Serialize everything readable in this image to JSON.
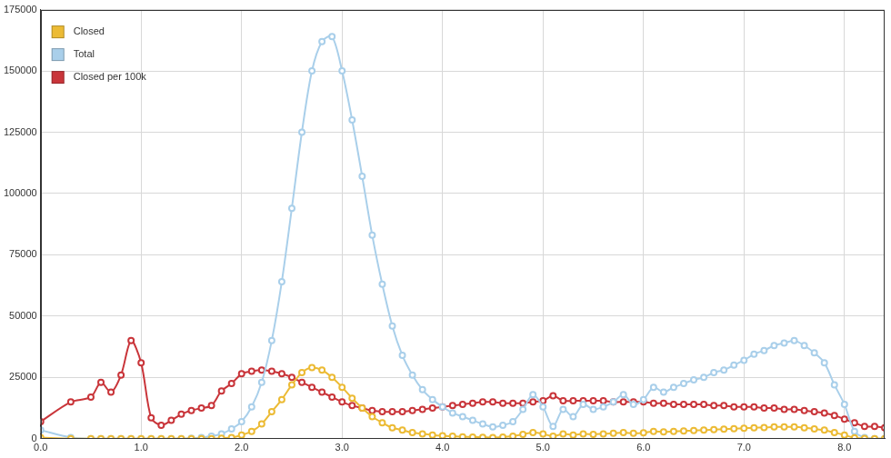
{
  "chart_data": {
    "type": "line",
    "x": [
      0,
      0.3,
      0.5,
      0.6,
      0.7,
      0.8,
      0.9,
      1.0,
      1.1,
      1.2,
      1.3,
      1.4,
      1.5,
      1.6,
      1.7,
      1.8,
      1.9,
      2.0,
      2.1,
      2.2,
      2.3,
      2.4,
      2.5,
      2.6,
      2.7,
      2.8,
      2.9,
      3.0,
      3.1,
      3.2,
      3.3,
      3.4,
      3.5,
      3.6,
      3.7,
      3.8,
      3.9,
      4.0,
      4.1,
      4.2,
      4.3,
      4.4,
      4.5,
      4.6,
      4.7,
      4.8,
      4.9,
      5.0,
      5.1,
      5.2,
      5.3,
      5.4,
      5.5,
      5.6,
      5.7,
      5.8,
      5.9,
      6.0,
      6.1,
      6.2,
      6.3,
      6.4,
      6.5,
      6.6,
      6.7,
      6.8,
      6.9,
      7.0,
      7.1,
      7.2,
      7.3,
      7.4,
      7.5,
      7.6,
      7.7,
      7.8,
      7.9,
      8.0,
      8.1,
      8.2,
      8.3,
      8.4
    ],
    "series": [
      {
        "name": "Closed",
        "color": "#ecbb35",
        "values": [
          500,
          0,
          0,
          0,
          0,
          0,
          0,
          0,
          0,
          0,
          0,
          0,
          0,
          0,
          0,
          200,
          500,
          1500,
          3000,
          6000,
          11000,
          16000,
          22000,
          27000,
          29000,
          28000,
          25000,
          21000,
          16500,
          12500,
          9000,
          6500,
          4500,
          3500,
          2500,
          2000,
          1500,
          1200,
          1000,
          800,
          700,
          600,
          500,
          700,
          1000,
          1800,
          2500,
          2000,
          1000,
          2000,
          1500,
          2000,
          1800,
          2000,
          2200,
          2500,
          2200,
          2400,
          3000,
          2800,
          3000,
          3200,
          3400,
          3500,
          3700,
          3900,
          4100,
          4300,
          4500,
          4600,
          4800,
          4800,
          4800,
          4500,
          4000,
          3500,
          2500,
          1500,
          400,
          100,
          0,
          0
        ]
      },
      {
        "name": "Total",
        "color": "#a9cfea",
        "values": [
          3500,
          500,
          0,
          0,
          0,
          0,
          0,
          0,
          0,
          0,
          0,
          0,
          200,
          500,
          1000,
          2000,
          4000,
          7000,
          13000,
          23000,
          40000,
          64000,
          94000,
          125000,
          150000,
          162000,
          164000,
          150000,
          130000,
          107000,
          83000,
          63000,
          46000,
          34000,
          26000,
          20000,
          16000,
          13000,
          10500,
          9000,
          7500,
          6000,
          4800,
          5500,
          7000,
          12000,
          18000,
          13000,
          5000,
          12000,
          9000,
          14000,
          12000,
          13000,
          15000,
          18000,
          14000,
          16000,
          21000,
          19000,
          21000,
          22500,
          24000,
          25000,
          27000,
          28000,
          30000,
          32000,
          34500,
          36000,
          38000,
          39000,
          40000,
          38000,
          35000,
          31000,
          22000,
          14000,
          3000,
          500,
          0,
          0
        ]
      },
      {
        "name": "Closed per 100k",
        "color": "#c9353a",
        "values": [
          7000,
          15000,
          17000,
          23000,
          19000,
          26000,
          40000,
          31000,
          8500,
          5500,
          7500,
          10000,
          11500,
          12500,
          13500,
          19500,
          22500,
          26500,
          27500,
          28000,
          27500,
          26500,
          25000,
          23000,
          21000,
          19000,
          17000,
          15000,
          13500,
          12500,
          11500,
          11000,
          11000,
          11000,
          11500,
          12000,
          12500,
          13000,
          13500,
          14000,
          14500,
          15000,
          15000,
          14500,
          14500,
          14500,
          15000,
          15500,
          17500,
          15500,
          15500,
          15500,
          15500,
          15500,
          15000,
          15000,
          15000,
          15000,
          14500,
          14500,
          14000,
          14000,
          14000,
          14000,
          13500,
          13500,
          13000,
          13000,
          13000,
          12500,
          12500,
          12000,
          12000,
          11500,
          11000,
          10500,
          9500,
          8000,
          6500,
          5000,
          5000,
          4500
        ]
      }
    ],
    "xlim": [
      0,
      8.4
    ],
    "xticks": [
      {
        "value": 0,
        "label": "0.0"
      },
      {
        "value": 1,
        "label": "1.0"
      },
      {
        "value": 2,
        "label": "2.0"
      },
      {
        "value": 3,
        "label": "3.0"
      },
      {
        "value": 4,
        "label": "4.0"
      },
      {
        "value": 5,
        "label": "5.0"
      },
      {
        "value": 6,
        "label": "6.0"
      },
      {
        "value": 7,
        "label": "7.0"
      },
      {
        "value": 8,
        "label": "8.0"
      }
    ],
    "ylim": [
      0,
      175000
    ],
    "yticks": [
      0,
      25000,
      50000,
      75000,
      100000,
      125000,
      150000,
      175000
    ],
    "grid": true,
    "legend": "upper left",
    "marker": "circle"
  }
}
